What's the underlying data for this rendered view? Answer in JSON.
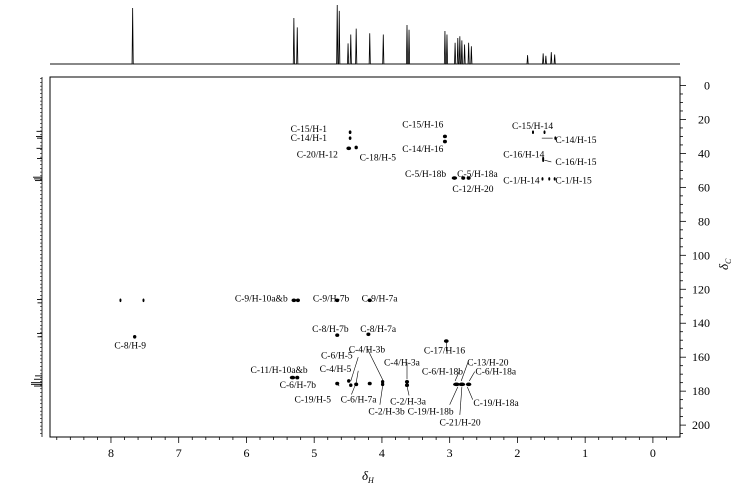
{
  "chart_data": {
    "type": "heatmap",
    "subtype": "2D NMR HSQC correlation spectrum with 1D projections",
    "xlabel": "δ",
    "xlabel_sub": "H",
    "ylabel": "δ",
    "ylabel_sub": "C",
    "xlim": [
      8.9,
      -0.4
    ],
    "ylim": [
      -5,
      207
    ],
    "x_reversed": true,
    "y_inverted": true,
    "x_ticks": [
      8,
      7,
      6,
      5,
      4,
      3,
      2,
      1,
      0
    ],
    "y_ticks": [
      0,
      20,
      40,
      60,
      80,
      100,
      120,
      140,
      160,
      180,
      200
    ],
    "grid": false,
    "legend": "none",
    "colors": {
      "line": "#000000",
      "background": "#ffffff"
    },
    "top_projection_peaks": [
      {
        "x": 7.68,
        "h": 0.95
      },
      {
        "x": 5.3,
        "h": 0.78
      },
      {
        "x": 5.25,
        "h": 0.62
      },
      {
        "x": 4.66,
        "h": 1.0
      },
      {
        "x": 4.63,
        "h": 0.9
      },
      {
        "x": 4.5,
        "h": 0.35
      },
      {
        "x": 4.46,
        "h": 0.5
      },
      {
        "x": 4.38,
        "h": 0.6
      },
      {
        "x": 4.18,
        "h": 0.52
      },
      {
        "x": 3.98,
        "h": 0.5
      },
      {
        "x": 3.63,
        "h": 0.66
      },
      {
        "x": 3.6,
        "h": 0.58
      },
      {
        "x": 3.07,
        "h": 0.56
      },
      {
        "x": 3.04,
        "h": 0.5
      },
      {
        "x": 2.92,
        "h": 0.36
      },
      {
        "x": 2.88,
        "h": 0.44
      },
      {
        "x": 2.85,
        "h": 0.47
      },
      {
        "x": 2.82,
        "h": 0.4
      },
      {
        "x": 2.78,
        "h": 0.33
      },
      {
        "x": 2.72,
        "h": 0.36
      },
      {
        "x": 2.68,
        "h": 0.3
      },
      {
        "x": 1.85,
        "h": 0.15
      },
      {
        "x": 1.62,
        "h": 0.18
      },
      {
        "x": 1.58,
        "h": 0.14
      },
      {
        "x": 1.5,
        "h": 0.2
      },
      {
        "x": 1.45,
        "h": 0.16
      }
    ],
    "side_projection_peaks": [
      {
        "y": 27,
        "h": 0.35
      },
      {
        "y": 30,
        "h": 0.4
      },
      {
        "y": 31,
        "h": 0.3
      },
      {
        "y": 37,
        "h": 0.35
      },
      {
        "y": 43,
        "h": 0.3
      },
      {
        "y": 54,
        "h": 0.7
      },
      {
        "y": 55,
        "h": 0.6
      },
      {
        "y": 56,
        "h": 0.5
      },
      {
        "y": 126,
        "h": 0.3
      },
      {
        "y": 128,
        "h": 0.25
      },
      {
        "y": 146,
        "h": 0.3
      },
      {
        "y": 148,
        "h": 0.25
      },
      {
        "y": 171,
        "h": 0.5
      },
      {
        "y": 173,
        "h": 0.6
      },
      {
        "y": 175,
        "h": 0.9
      },
      {
        "y": 176,
        "h": 0.9
      },
      {
        "y": 177,
        "h": 0.6
      }
    ],
    "cross_peaks": [
      {
        "x": 7.86,
        "y": 126.5,
        "w": 0.02
      },
      {
        "x": 7.52,
        "y": 126.5,
        "w": 0.02
      },
      {
        "x": 7.65,
        "y": 148,
        "w": 0.05
      },
      {
        "x": 5.3,
        "y": 126.5,
        "w": 0.07
      },
      {
        "x": 5.24,
        "y": 126.5,
        "w": 0.06
      },
      {
        "x": 4.66,
        "y": 126.5,
        "w": 0.06
      },
      {
        "x": 4.18,
        "y": 126.5,
        "w": 0.06
      },
      {
        "x": 4.66,
        "y": 147,
        "w": 0.06
      },
      {
        "x": 4.2,
        "y": 146.5,
        "w": 0.06
      },
      {
        "x": 5.32,
        "y": 172,
        "w": 0.08
      },
      {
        "x": 5.25,
        "y": 172,
        "w": 0.06
      },
      {
        "x": 4.66,
        "y": 175.5,
        "w": 0.06
      },
      {
        "x": 4.49,
        "y": 174,
        "w": 0.05
      },
      {
        "x": 4.46,
        "y": 176.5,
        "w": 0.05
      },
      {
        "x": 4.38,
        "y": 176,
        "w": 0.06
      },
      {
        "x": 4.18,
        "y": 175.5,
        "w": 0.06
      },
      {
        "x": 3.99,
        "y": 174.5,
        "w": 0.05
      },
      {
        "x": 3.99,
        "y": 176,
        "w": 0.05
      },
      {
        "x": 3.63,
        "y": 174.5,
        "w": 0.06
      },
      {
        "x": 3.63,
        "y": 176.5,
        "w": 0.06
      },
      {
        "x": 3.05,
        "y": 150.5,
        "w": 0.07
      },
      {
        "x": 2.9,
        "y": 176,
        "w": 0.1
      },
      {
        "x": 2.82,
        "y": 176,
        "w": 0.1
      },
      {
        "x": 2.72,
        "y": 176,
        "w": 0.08
      },
      {
        "x": 4.47,
        "y": 27.5,
        "w": 0.04
      },
      {
        "x": 4.47,
        "y": 31,
        "w": 0.04
      },
      {
        "x": 4.49,
        "y": 37,
        "w": 0.07
      },
      {
        "x": 4.38,
        "y": 36.5,
        "w": 0.05
      },
      {
        "x": 3.07,
        "y": 30,
        "w": 0.06
      },
      {
        "x": 3.07,
        "y": 33,
        "w": 0.06
      },
      {
        "x": 2.93,
        "y": 54.5,
        "w": 0.08
      },
      {
        "x": 2.8,
        "y": 54.5,
        "w": 0.06
      },
      {
        "x": 2.72,
        "y": 54.5,
        "w": 0.06
      },
      {
        "x": 1.77,
        "y": 27.5,
        "w": 0.03
      },
      {
        "x": 1.6,
        "y": 27.5,
        "w": 0.03
      },
      {
        "x": 1.44,
        "y": 31,
        "w": 0.03
      },
      {
        "x": 1.62,
        "y": 43,
        "w": 0.02
      },
      {
        "x": 1.62,
        "y": 44,
        "w": 0.02
      },
      {
        "x": 1.63,
        "y": 55,
        "w": 0.02
      },
      {
        "x": 1.53,
        "y": 55,
        "w": 0.02
      },
      {
        "x": 1.45,
        "y": 55,
        "w": 0.02
      }
    ],
    "annotations": [
      {
        "text": "C-15/H-1",
        "x": 4.81,
        "y": 25.5,
        "anchor": "end"
      },
      {
        "text": "C-14/H-1",
        "x": 4.81,
        "y": 31,
        "anchor": "end"
      },
      {
        "text": "C-20/H-12",
        "x": 4.65,
        "y": 40.5,
        "anchor": "end"
      },
      {
        "text": "C-18/H-5",
        "x": 4.33,
        "y": 42.5,
        "anchor": "start"
      },
      {
        "text": "C-15/H-16",
        "x": 3.7,
        "y": 23,
        "anchor": "start"
      },
      {
        "text": "C-14/H-16",
        "x": 3.7,
        "y": 37.5,
        "anchor": "start"
      },
      {
        "text": "C-5/H-18b",
        "x": 3.66,
        "y": 52,
        "anchor": "start"
      },
      {
        "text": "C-5/H-18a",
        "x": 2.89,
        "y": 52,
        "anchor": "start"
      },
      {
        "text": "C-12/H-20",
        "x": 2.96,
        "y": 61,
        "anchor": "start"
      },
      {
        "text": "C-15/H-14",
        "x": 2.08,
        "y": 24,
        "anchor": "start"
      },
      {
        "text": "C-14/H-15",
        "x": 1.44,
        "y": 32,
        "anchor": "start"
      },
      {
        "text": "C-16/H-14",
        "x": 2.21,
        "y": 40.5,
        "anchor": "start"
      },
      {
        "text": "C-16/H-15",
        "x": 1.44,
        "y": 45,
        "anchor": "start"
      },
      {
        "text": "C-1/H-14",
        "x": 2.21,
        "y": 56,
        "anchor": "start"
      },
      {
        "text": "C-1/H-15",
        "x": 1.44,
        "y": 56,
        "anchor": "start"
      },
      {
        "text": "C-9/H-10a&b",
        "x": 6.17,
        "y": 125.5,
        "anchor": "start"
      },
      {
        "text": "C-9/H-7b",
        "x": 5.02,
        "y": 125.5,
        "anchor": "start"
      },
      {
        "text": "C-9/H-7a",
        "x": 4.3,
        "y": 125.5,
        "anchor": "start"
      },
      {
        "text": "C-8/H-7b",
        "x": 5.03,
        "y": 143.5,
        "anchor": "start"
      },
      {
        "text": "C-8/H-7a",
        "x": 4.32,
        "y": 143.5,
        "anchor": "start"
      },
      {
        "text": "C-8/H-9",
        "x": 7.95,
        "y": 153,
        "anchor": "start"
      },
      {
        "text": "C-4/H-3b",
        "x": 4.49,
        "y": 155.5,
        "anchor": "start"
      },
      {
        "text": "C-6/H-5",
        "x": 4.9,
        "y": 159,
        "anchor": "start"
      },
      {
        "text": "C-17/H-16",
        "x": 3.38,
        "y": 156,
        "anchor": "start"
      },
      {
        "text": "C-4/H-3a",
        "x": 3.97,
        "y": 163,
        "anchor": "start"
      },
      {
        "text": "C-13/H-20",
        "x": 2.74,
        "y": 163,
        "anchor": "start"
      },
      {
        "text": "C-11/H-10a&b",
        "x": 5.94,
        "y": 167.5,
        "anchor": "start"
      },
      {
        "text": "C-4/H-5",
        "x": 4.92,
        "y": 167,
        "anchor": "start"
      },
      {
        "text": "C-6/H-18b",
        "x": 3.41,
        "y": 168.5,
        "anchor": "start"
      },
      {
        "text": "C-6/H-18a",
        "x": 2.62,
        "y": 168.5,
        "anchor": "start"
      },
      {
        "text": "C-6/H-7b",
        "x": 5.51,
        "y": 176.5,
        "anchor": "start"
      },
      {
        "text": "C-19/H-5",
        "x": 5.29,
        "y": 185,
        "anchor": "start"
      },
      {
        "text": "C-6/H-7a",
        "x": 4.61,
        "y": 185,
        "anchor": "start"
      },
      {
        "text": "C-2/H-3a",
        "x": 3.88,
        "y": 186,
        "anchor": "start"
      },
      {
        "text": "C-19/H-18a",
        "x": 2.65,
        "y": 187,
        "anchor": "start"
      },
      {
        "text": "C-2/H-3b",
        "x": 4.2,
        "y": 192,
        "anchor": "start"
      },
      {
        "text": "C-19/H-18b",
        "x": 3.62,
        "y": 192,
        "anchor": "start"
      },
      {
        "text": "C-21/H-20",
        "x": 3.15,
        "y": 198.5,
        "anchor": "start"
      }
    ],
    "leader_lines": [
      {
        "from": [
          4.21,
          155.5
        ],
        "to": [
          3.98,
          174
        ]
      },
      {
        "from": [
          4.35,
          160
        ],
        "to": [
          4.46,
          174
        ]
      },
      {
        "from": [
          4.35,
          168
        ],
        "to": [
          4.38,
          175
        ]
      },
      {
        "from": [
          3.63,
          163
        ],
        "to": [
          3.63,
          173
        ]
      },
      {
        "from": [
          3.05,
          156.5
        ],
        "to": [
          3.05,
          150.5
        ]
      },
      {
        "from": [
          2.73,
          163
        ],
        "to": [
          2.83,
          174
        ]
      },
      {
        "from": [
          2.86,
          168.5
        ],
        "to": [
          2.92,
          174
        ]
      },
      {
        "from": [
          2.63,
          168.5
        ],
        "to": [
          2.71,
          174
        ]
      },
      {
        "from": [
          4.63,
          177
        ],
        "to": [
          4.66,
          176
        ]
      },
      {
        "from": [
          4.45,
          182
        ],
        "to": [
          4.4,
          177
        ]
      },
      {
        "from": [
          3.6,
          182.5
        ],
        "to": [
          3.63,
          177
        ]
      },
      {
        "from": [
          2.66,
          185
        ],
        "to": [
          2.74,
          177.5
        ]
      },
      {
        "from": [
          4.03,
          188
        ],
        "to": [
          3.99,
          177
        ]
      },
      {
        "from": [
          3.0,
          188
        ],
        "to": [
          2.88,
          177.5
        ]
      },
      {
        "from": [
          2.85,
          194
        ],
        "to": [
          2.82,
          177.5
        ]
      },
      {
        "from": [
          1.64,
          31
        ],
        "to": [
          1.48,
          31
        ]
      },
      {
        "from": [
          1.5,
          45
        ],
        "to": [
          1.6,
          44
        ]
      }
    ]
  }
}
